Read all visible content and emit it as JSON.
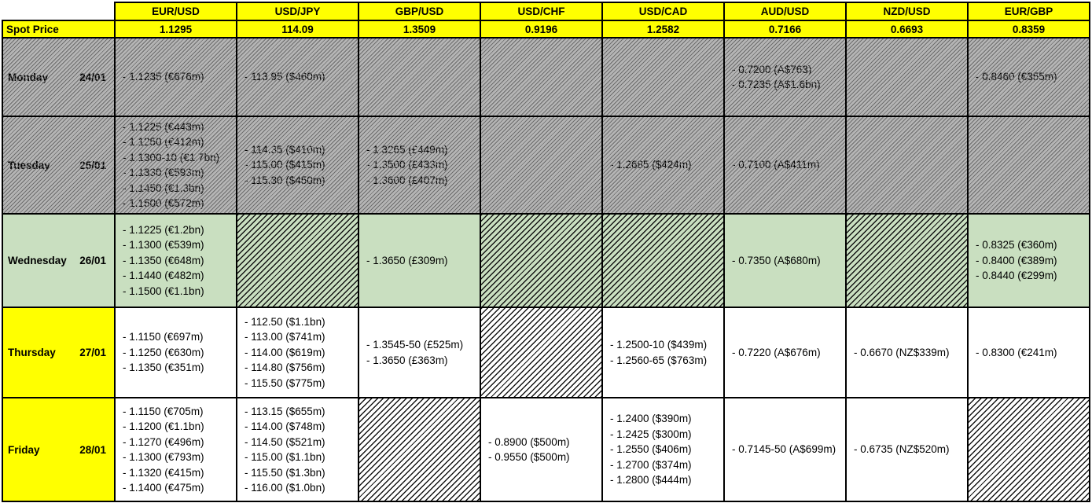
{
  "colors": {
    "header_yellow": "#FFFF00",
    "today_green": "#C9DFC0",
    "past_gray": "#B5B5B5",
    "border_black": "#000000"
  },
  "header": {
    "corner": "",
    "spot_label": "Spot Price",
    "pairs": [
      "EUR/USD",
      "USD/JPY",
      "GBP/USD",
      "USD/CHF",
      "USD/CAD",
      "AUD/USD",
      "NZD/USD",
      "EUR/GBP"
    ],
    "spot_values": [
      "1.1295",
      "114.09",
      "1.3509",
      "0.9196",
      "1.2582",
      "0.7166",
      "0.6693",
      "0.8359"
    ]
  },
  "days": [
    {
      "day": "Monday",
      "date": "24/01",
      "state": "past",
      "cells": [
        [
          "- 1.1235 (€676m)"
        ],
        [
          "- 113.95 ($460m)"
        ],
        [],
        [],
        [],
        [
          "- 0.7200 (A$763)",
          "- 0.7235 (A$1.6bn)"
        ],
        [],
        [
          "- 0.8460 (€355m)"
        ]
      ]
    },
    {
      "day": "Tuesday",
      "date": "25/01",
      "state": "past",
      "cells": [
        [
          "- 1.1225 (€443m)",
          "- 1.1250 (€412m)",
          "- 1.1300-10 (€1.7bn)",
          "- 1.1330 (€593m)",
          "- 1.1450 (€1.3bn)",
          "- 1.1500 (€572m)"
        ],
        [
          "- 114.35 ($410m)",
          "- 115.00 ($415m)",
          "- 115.30 ($450m)"
        ],
        [
          "- 1.3265 (£449m)",
          "- 1.3500 (£433m)",
          "- 1.3600 (£407m)"
        ],
        [],
        [
          "- 1.2685 ($424m)"
        ],
        [
          "- 0.7100 (A$411m)"
        ],
        [],
        []
      ]
    },
    {
      "day": "Wednesday",
      "date": "26/01",
      "state": "today",
      "cells": [
        [
          "- 1.1225 (€1.2bn)",
          "- 1.1300 (€539m)",
          "- 1.1350 (€648m)",
          "- 1.1440 (€482m)",
          "- 1.1500 (€1.1bn)"
        ],
        [],
        [
          "- 1.3650 (£309m)"
        ],
        [],
        [],
        [
          "- 0.7350 (A$680m)"
        ],
        [],
        [
          "- 0.8325 (€360m)",
          "- 0.8400 (€389m)",
          "- 0.8440 (€299m)"
        ]
      ]
    },
    {
      "day": "Thursday",
      "date": "27/01",
      "state": "future",
      "cells": [
        [
          "- 1.1150 (€697m)",
          "- 1.1250 (€630m)",
          "- 1.1350 (€351m)"
        ],
        [
          "- 112.50 ($1.1bn)",
          "- 113.00 ($741m)",
          "- 114.00 ($619m)",
          "- 114.80 ($756m)",
          "- 115.50 ($775m)"
        ],
        [
          "- 1.3545-50 (£525m)",
          "- 1.3650 (£363m)"
        ],
        [],
        [
          "- 1.2500-10 ($439m)",
          "- 1.2560-65 ($763m)"
        ],
        [
          "- 0.7220 (A$676m)"
        ],
        [
          "- 0.6670 (NZ$339m)"
        ],
        [
          "- 0.8300 (€241m)"
        ]
      ]
    },
    {
      "day": "Friday",
      "date": "28/01",
      "state": "future",
      "cells": [
        [
          "- 1.1150 (€705m)",
          "- 1.1200 (€1.1bn)",
          "- 1.1270 (€496m)",
          "- 1.1300 (€793m)",
          "- 1.1320 (€415m)",
          "- 1.1400 (€475m)"
        ],
        [
          "- 113.15 ($655m)",
          "- 114.00 ($748m)",
          "- 114.50 ($521m)",
          "- 115.00 ($1.1bn)",
          "- 115.50 ($1.3bn)",
          "- 116.00 ($1.0bn)"
        ],
        [],
        [
          "- 0.8900 ($500m)",
          "- 0.9550 ($500m)"
        ],
        [
          "- 1.2400 ($390m)",
          "- 1.2425 ($300m)",
          "- 1.2550 ($406m)",
          "- 1.2700 ($374m)",
          "- 1.2800 ($444m)"
        ],
        [
          "- 0.7145-50 (A$699m)"
        ],
        [
          "- 0.6735 (NZ$520m)"
        ],
        []
      ]
    }
  ]
}
